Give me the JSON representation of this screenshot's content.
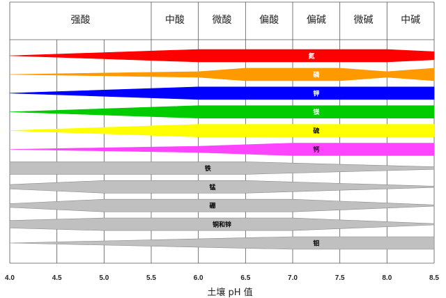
{
  "chart_data": {
    "type": "diagram",
    "xlabel": "土壤 pH 值",
    "xlim": [
      4.0,
      8.5
    ],
    "xticks": [
      "4.0",
      "4.5",
      "5.0",
      "5.5",
      "6.0",
      "6.5",
      "7.0",
      "7.5",
      "8.0",
      "8.5"
    ],
    "header": [
      {
        "label": "强酸",
        "from": 4.0,
        "to": 5.5
      },
      {
        "label": "中酸",
        "from": 5.5,
        "to": 6.0
      },
      {
        "label": "微酸",
        "from": 6.0,
        "to": 6.5
      },
      {
        "label": "偏酸",
        "from": 6.5,
        "to": 7.0
      },
      {
        "label": "偏碱",
        "from": 7.0,
        "to": 7.5
      },
      {
        "label": "微碱",
        "from": 7.5,
        "to": 8.0
      },
      {
        "label": "中碱",
        "from": 8.0,
        "to": 8.5
      }
    ],
    "nutrients": [
      {
        "name": "氮",
        "color": "#ff0000",
        "label_color": "#ffffff",
        "label_at": 7.2,
        "profile": [
          [
            4.0,
            0.0
          ],
          [
            6.0,
            1.0
          ],
          [
            8.0,
            1.0
          ],
          [
            8.5,
            0.65
          ]
        ]
      },
      {
        "name": "磷",
        "color": "#ff9900",
        "label_color": "#ffffff",
        "label_at": 7.25,
        "profile": [
          [
            4.0,
            0.0
          ],
          [
            6.0,
            0.45
          ],
          [
            6.5,
            1.0
          ],
          [
            7.5,
            1.0
          ],
          [
            8.0,
            0.45
          ],
          [
            8.5,
            1.0
          ]
        ]
      },
      {
        "name": "钾",
        "color": "#0000ff",
        "label_color": "#ffffff",
        "label_at": 7.25,
        "profile": [
          [
            4.0,
            0.0
          ],
          [
            6.0,
            1.0
          ],
          [
            8.5,
            1.0
          ]
        ]
      },
      {
        "name": "镁",
        "color": "#00cc00",
        "label_color": "#ffffff",
        "label_at": 7.25,
        "profile": [
          [
            4.0,
            0.0
          ],
          [
            6.0,
            1.0
          ],
          [
            8.5,
            1.0
          ]
        ]
      },
      {
        "name": "硫",
        "color": "#ffff00",
        "label_color": "#000000",
        "label_at": 7.25,
        "profile": [
          [
            4.0,
            0.0
          ],
          [
            6.0,
            1.0
          ],
          [
            8.5,
            1.0
          ]
        ]
      },
      {
        "name": "钙",
        "color": "#ff44ff",
        "label_color": "#000000",
        "label_at": 7.25,
        "profile": [
          [
            4.0,
            0.0
          ],
          [
            6.0,
            0.5
          ],
          [
            7.0,
            1.0
          ],
          [
            8.5,
            1.0
          ]
        ]
      },
      {
        "name": "铁",
        "color": "#c0c0c0",
        "label_color": "#000000",
        "label_at": 6.1,
        "profile": [
          [
            4.0,
            1.0
          ],
          [
            6.5,
            1.0
          ],
          [
            8.5,
            0.2
          ]
        ]
      },
      {
        "name": "锰",
        "color": "#c0c0c0",
        "label_color": "#000000",
        "label_at": 6.15,
        "profile": [
          [
            4.0,
            0.35
          ],
          [
            5.0,
            1.0
          ],
          [
            6.5,
            1.0
          ],
          [
            8.5,
            0.1
          ]
        ]
      },
      {
        "name": "硼",
        "color": "#c0c0c0",
        "label_color": "#000000",
        "label_at": 6.15,
        "profile": [
          [
            4.0,
            0.3
          ],
          [
            5.0,
            1.0
          ],
          [
            7.0,
            1.0
          ],
          [
            8.5,
            0.1
          ]
        ]
      },
      {
        "name": "铜和锌",
        "color": "#c0c0c0",
        "label_color": "#000000",
        "label_at": 6.25,
        "profile": [
          [
            4.0,
            0.6
          ],
          [
            5.0,
            1.0
          ],
          [
            7.0,
            1.0
          ],
          [
            8.5,
            0.1
          ]
        ]
      },
      {
        "name": "钼",
        "color": "#c0c0c0",
        "label_color": "#000000",
        "label_at": 7.25,
        "profile": [
          [
            4.0,
            0.0
          ],
          [
            7.0,
            1.0
          ],
          [
            8.5,
            1.0
          ]
        ]
      }
    ]
  }
}
